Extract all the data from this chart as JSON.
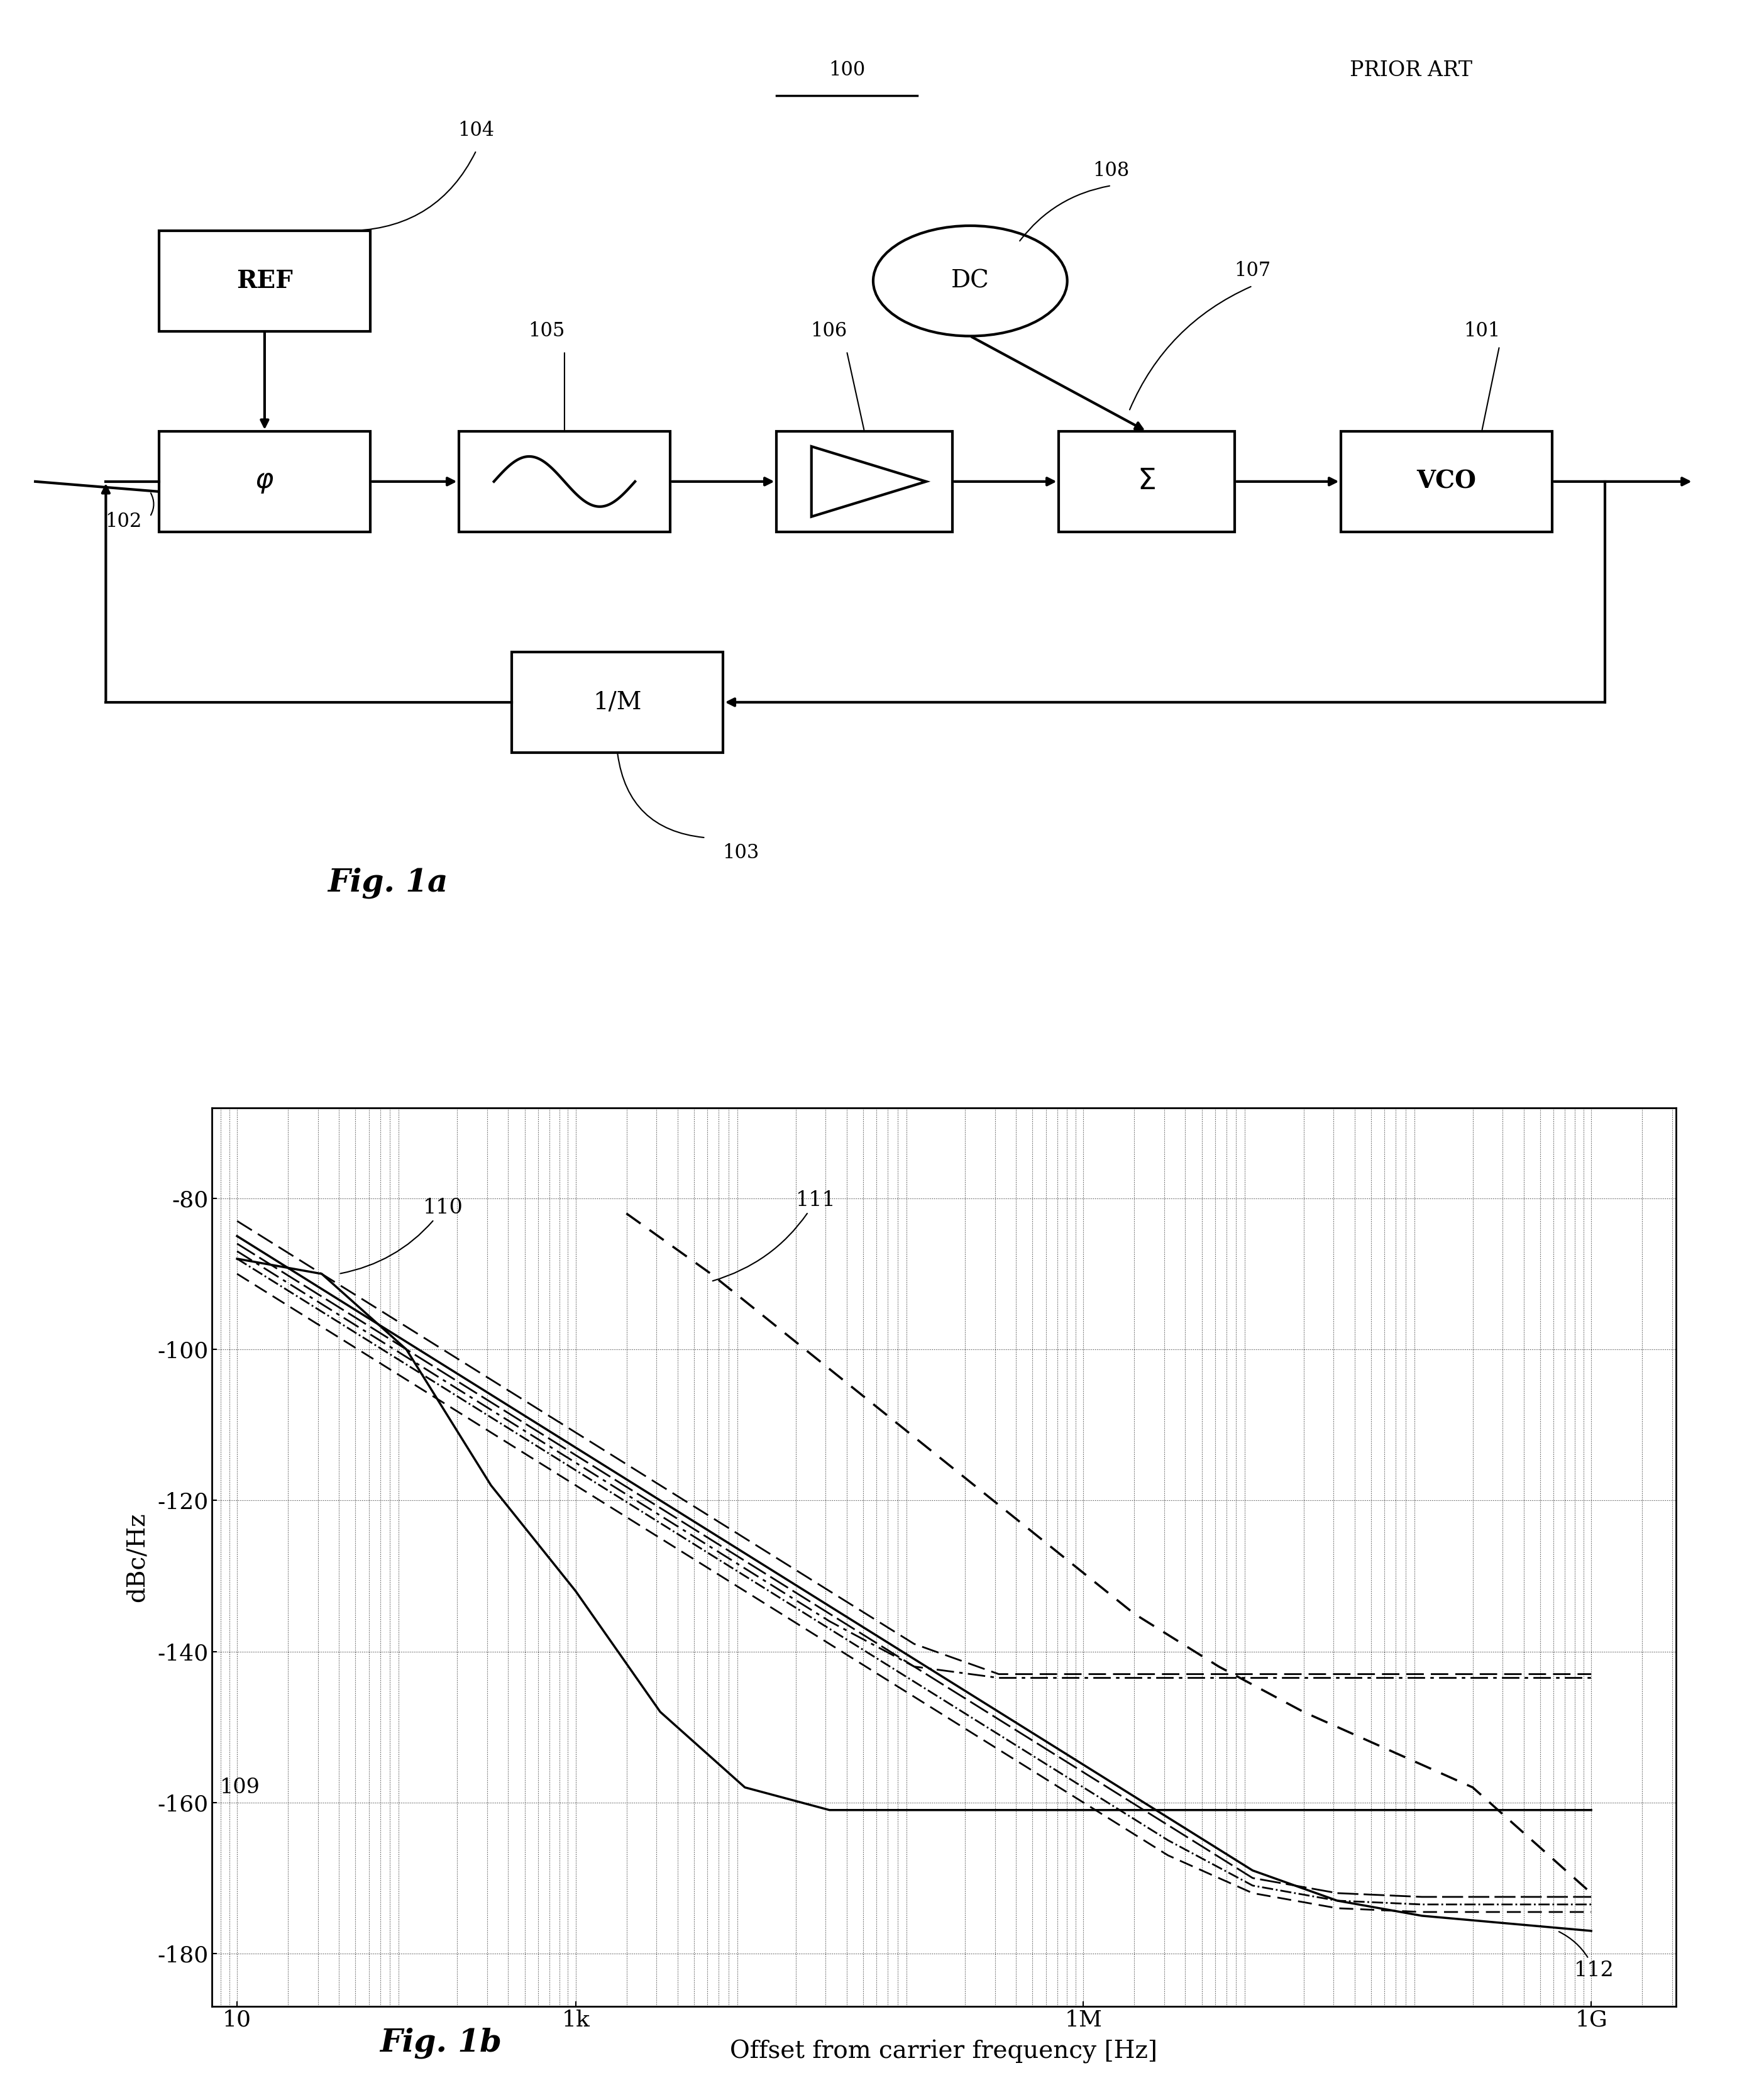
{
  "title_100": "100",
  "prior_art_text": "PRIOR ART",
  "fig1a_text": "Fig. 1a",
  "fig1b_text": "Fig. 1b",
  "ylabel": "dBc/Hz",
  "xlabel": "Offset from carrier frequency [Hz]",
  "yticks": [
    -80,
    -100,
    -120,
    -140,
    -160,
    -180
  ],
  "xtick_labels": [
    "10",
    "1k",
    "1M",
    "1G"
  ],
  "xtick_positions": [
    1,
    3,
    6,
    9
  ],
  "ylim": [
    -185,
    -70
  ],
  "xlim": [
    0.7,
    10.3
  ],
  "annotation_110": "110",
  "annotation_111": "111",
  "annotation_109": "109",
  "annotation_112": "112",
  "annotation_101": "101",
  "annotation_102": "102",
  "annotation_103": "103",
  "annotation_104": "104",
  "annotation_105": "105",
  "annotation_106": "106",
  "annotation_107": "107",
  "annotation_108": "108",
  "bg_color": "#ffffff",
  "line_color": "#000000"
}
